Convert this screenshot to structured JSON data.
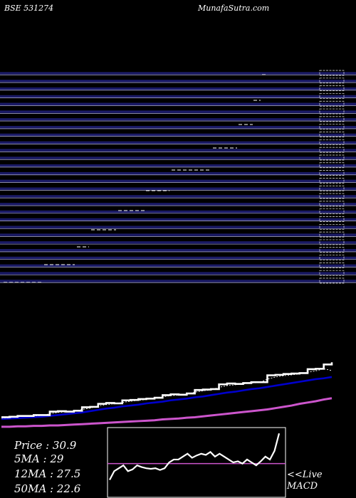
{
  "header": {
    "left": "BSE 531274",
    "right": "MunafaSutra.com"
  },
  "legend": {
    "price": "Price  :  30.9",
    "ma5": "5MA : 29",
    "ma12": "12MA : 27.5",
    "ma50": "50MA : 22.6"
  },
  "macd_label": {
    "line1": "<<Live",
    "line2": "MACD"
  },
  "colors": {
    "background": "#000000",
    "price": "#ffffff",
    "ma5": "#ffffff",
    "ma12": "#0000cc",
    "ma50": "#cc55cc",
    "bands": "#1a1a66",
    "macd_signal": "#cc55cc"
  },
  "chart_data": [
    {
      "type": "line",
      "title": "",
      "series": [
        {
          "values": [
            18.2,
            18.3,
            18.5,
            18.5,
            18.7,
            18.7,
            19.5,
            19.6,
            19.5,
            19.7,
            20.5,
            20.6,
            21.3,
            21.5,
            21.4,
            22.1,
            22.2,
            22.4,
            22.5,
            22.7,
            23.3,
            23.5,
            23.4,
            23.7,
            24.5,
            24.6,
            24.7,
            25.8,
            26.0,
            25.9,
            26.1,
            26.3,
            26.3,
            27.9,
            28.0,
            28.2,
            28.3,
            28.4,
            29.3,
            29.4,
            30.4,
            30.9
          ]
        },
        {
          "values": [
            18.0,
            18.1,
            18.3,
            18.4,
            18.5,
            18.6,
            19.0,
            19.3,
            19.4,
            19.5,
            20.0,
            20.3,
            20.8,
            21.1,
            21.3,
            21.6,
            21.9,
            22.1,
            22.3,
            22.5,
            22.9,
            23.2,
            23.3,
            23.5,
            24.0,
            24.3,
            24.5,
            25.1,
            25.5,
            25.7,
            25.9,
            26.1,
            26.2,
            27.0,
            27.5,
            27.8,
            28.0,
            28.2,
            28.6,
            28.9,
            29.4,
            29.0
          ]
        },
        {
          "values": [
            17.8,
            17.9,
            18.0,
            18.1,
            18.2,
            18.3,
            18.5,
            18.7,
            18.9,
            19.1,
            19.3,
            19.6,
            19.9,
            20.2,
            20.4,
            20.7,
            20.9,
            21.1,
            21.4,
            21.6,
            21.8,
            22.1,
            22.3,
            22.5,
            22.8,
            23.0,
            23.3,
            23.6,
            23.9,
            24.1,
            24.4,
            24.7,
            24.9,
            25.2,
            25.5,
            25.8,
            26.1,
            26.4,
            26.7,
            27.0,
            27.2,
            27.5
          ]
        },
        {
          "values": [
            16.0,
            16.0,
            16.1,
            16.1,
            16.2,
            16.2,
            16.3,
            16.3,
            16.4,
            16.5,
            16.6,
            16.7,
            16.8,
            16.9,
            17.0,
            17.1,
            17.2,
            17.3,
            17.4,
            17.5,
            17.7,
            17.8,
            17.9,
            18.1,
            18.2,
            18.4,
            18.6,
            18.8,
            19.0,
            19.2,
            19.4,
            19.6,
            19.8,
            20.0,
            20.3,
            20.6,
            20.9,
            21.3,
            21.6,
            21.9,
            22.3,
            22.6
          ]
        }
      ]
    },
    {
      "type": "line",
      "title": "",
      "series": [
        {
          "values": [
            0.3,
            0.45,
            0.5,
            0.55,
            0.45,
            0.48,
            0.55,
            0.52,
            0.5,
            0.49,
            0.5,
            0.47,
            0.5,
            0.6,
            0.65,
            0.65,
            0.7,
            0.75,
            0.68,
            0.72,
            0.75,
            0.73,
            0.78,
            0.7,
            0.75,
            0.7,
            0.65,
            0.6,
            0.62,
            0.58,
            0.65,
            0.6,
            0.55,
            0.62,
            0.7,
            0.65,
            0.8,
            1.1
          ]
        },
        {
          "values": [
            0.58,
            0.58
          ]
        }
      ]
    }
  ]
}
